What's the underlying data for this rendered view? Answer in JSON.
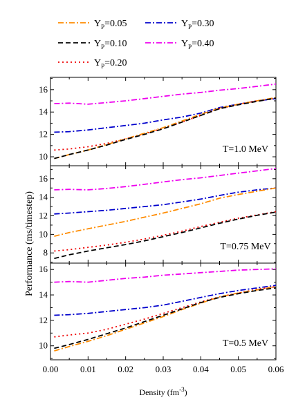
{
  "chart_data": {
    "type": "line",
    "ylabel": "Performance (ms/timestep)",
    "xlabel_main": "Density (fm",
    "xlabel_sup": "-3",
    "xlabel_close": ")",
    "xlim": [
      0.0,
      0.06
    ],
    "xticks": [
      "0.00",
      "0.01",
      "0.02",
      "0.03",
      "0.04",
      "0.05",
      "0.06"
    ],
    "x": [
      0.001,
      0.005,
      0.01,
      0.015,
      0.02,
      0.025,
      0.03,
      0.035,
      0.04,
      0.045,
      0.05,
      0.055,
      0.06
    ],
    "legend": [
      {
        "key": "yp005",
        "base": "Y",
        "sub": "P",
        "value": "=0.05",
        "color": "#ff8c00",
        "dash": "8,3,2,3"
      },
      {
        "key": "yp030",
        "base": "Y",
        "sub": "P",
        "value": "=0.30",
        "color": "#0000cc",
        "dash": "8,3,2,3"
      },
      {
        "key": "yp010",
        "base": "Y",
        "sub": "P",
        "value": "=0.10",
        "color": "#000000",
        "dash": "7,4"
      },
      {
        "key": "yp040",
        "base": "Y",
        "sub": "P",
        "value": "=0.40",
        "color": "#ee00ee",
        "dash": "8,3,2,3"
      },
      {
        "key": "yp020",
        "base": "Y",
        "sub": "P",
        "value": "=0.20",
        "color": "#ee0000",
        "dash": "2,4"
      }
    ],
    "panels": [
      {
        "label": "T=1.0 MeV",
        "ylim": [
          9.2,
          17.1
        ],
        "yticks": [
          "10",
          "12",
          "14",
          "16"
        ],
        "ytick_values": [
          10,
          12,
          14,
          16
        ],
        "series": {
          "yp005": [
            9.85,
            10.2,
            10.6,
            11.1,
            11.6,
            12.1,
            12.6,
            13.2,
            13.8,
            14.35,
            14.7,
            15.0,
            15.3
          ],
          "yp010": [
            9.85,
            10.2,
            10.6,
            11.05,
            11.55,
            12.0,
            12.5,
            13.1,
            13.7,
            14.3,
            14.65,
            14.95,
            15.25
          ],
          "yp020": [
            10.6,
            10.7,
            10.9,
            11.2,
            11.6,
            12.05,
            12.55,
            13.1,
            13.7,
            14.3,
            14.7,
            15.0,
            15.25
          ],
          "yp030": [
            12.2,
            12.25,
            12.4,
            12.6,
            12.8,
            13.0,
            13.3,
            13.55,
            13.9,
            14.4,
            14.7,
            15.0,
            15.2
          ],
          "yp040": [
            14.75,
            14.8,
            14.7,
            14.85,
            15.0,
            15.2,
            15.4,
            15.6,
            15.75,
            15.95,
            16.1,
            16.3,
            16.5
          ]
        }
      },
      {
        "label": "T=0.75 MeV",
        "ylim": [
          6.9,
          17.4
        ],
        "yticks": [
          "8",
          "10",
          "12",
          "14",
          "16"
        ],
        "ytick_values": [
          8,
          10,
          12,
          14,
          16
        ],
        "series": {
          "yp005": [
            9.8,
            10.2,
            10.6,
            11.0,
            11.4,
            11.85,
            12.3,
            12.8,
            13.3,
            13.9,
            14.3,
            14.65,
            15.0
          ],
          "yp010": [
            7.4,
            7.8,
            8.2,
            8.55,
            8.9,
            9.3,
            9.75,
            10.2,
            10.7,
            11.2,
            11.65,
            12.05,
            12.4
          ],
          "yp020": [
            8.2,
            8.35,
            8.6,
            8.85,
            9.15,
            9.5,
            9.9,
            10.35,
            10.85,
            11.3,
            11.75,
            12.1,
            12.45
          ],
          "yp030": [
            12.2,
            12.3,
            12.45,
            12.6,
            12.8,
            13.0,
            13.2,
            13.5,
            13.8,
            14.2,
            14.55,
            14.8,
            15.0
          ],
          "yp040": [
            14.8,
            14.85,
            14.8,
            14.95,
            15.15,
            15.4,
            15.65,
            15.9,
            16.1,
            16.35,
            16.6,
            16.85,
            17.1
          ]
        }
      },
      {
        "label": "T=0.5 MeV",
        "ylim": [
          8.9,
          16.5
        ],
        "yticks": [
          "10",
          "12",
          "14",
          "16"
        ],
        "ytick_values": [
          10,
          12,
          14,
          16
        ],
        "series": {
          "yp005": [
            9.6,
            9.95,
            10.35,
            10.8,
            11.3,
            11.8,
            12.3,
            12.85,
            13.35,
            13.85,
            14.15,
            14.4,
            14.65
          ],
          "yp010": [
            9.8,
            10.1,
            10.5,
            10.95,
            11.4,
            11.9,
            12.4,
            12.9,
            13.4,
            13.8,
            14.1,
            14.35,
            14.55
          ],
          "yp020": [
            10.7,
            10.85,
            11.0,
            11.3,
            11.7,
            12.1,
            12.55,
            13.0,
            13.45,
            13.85,
            14.15,
            14.45,
            14.65
          ],
          "yp030": [
            12.4,
            12.45,
            12.55,
            12.7,
            12.85,
            13.0,
            13.2,
            13.5,
            13.8,
            14.1,
            14.35,
            14.55,
            14.75
          ],
          "yp040": [
            15.0,
            15.05,
            15.0,
            15.15,
            15.3,
            15.4,
            15.55,
            15.65,
            15.75,
            15.85,
            15.95,
            16.0,
            16.05
          ]
        }
      }
    ]
  }
}
